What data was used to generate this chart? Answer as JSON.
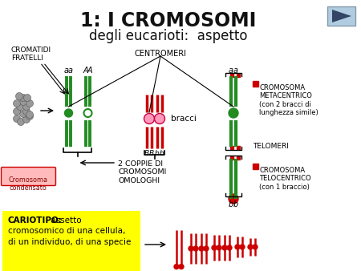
{
  "title1": "1: I CROMOSOMI",
  "title2": "degli eucarioti:  aspetto",
  "bg_color": "#ffffff",
  "green": "#228B22",
  "red": "#CC0000",
  "yellow": "#FFFF00",
  "label_cromatidi": "CROMATIDI\nFRATELLI",
  "label_centromeri": "CENTROMERI",
  "label_bracci": "bracci",
  "label_2coppie": "2 COPPIE DI\nCROMOSOMI\nOMOLOGHI",
  "label_condensato": "Cromosoma\ncondensato",
  "label_metacentrico": "CROMOSOMA\nMETACENTRICO\n(con 2 bracci di\nlunghezza simile)",
  "label_telomeri": "TELOMERI",
  "label_telocentrico": "CROMOSOMA\nTELOCENTRICO\n(con 1 braccio)",
  "cariotipo_bold": "CARIOTIPO:",
  "cariotipo_rest1": " assetto",
  "cariotipo_line2": "cromosomico di una cellula,",
  "cariotipo_line3": "di un individuo, di una specie"
}
